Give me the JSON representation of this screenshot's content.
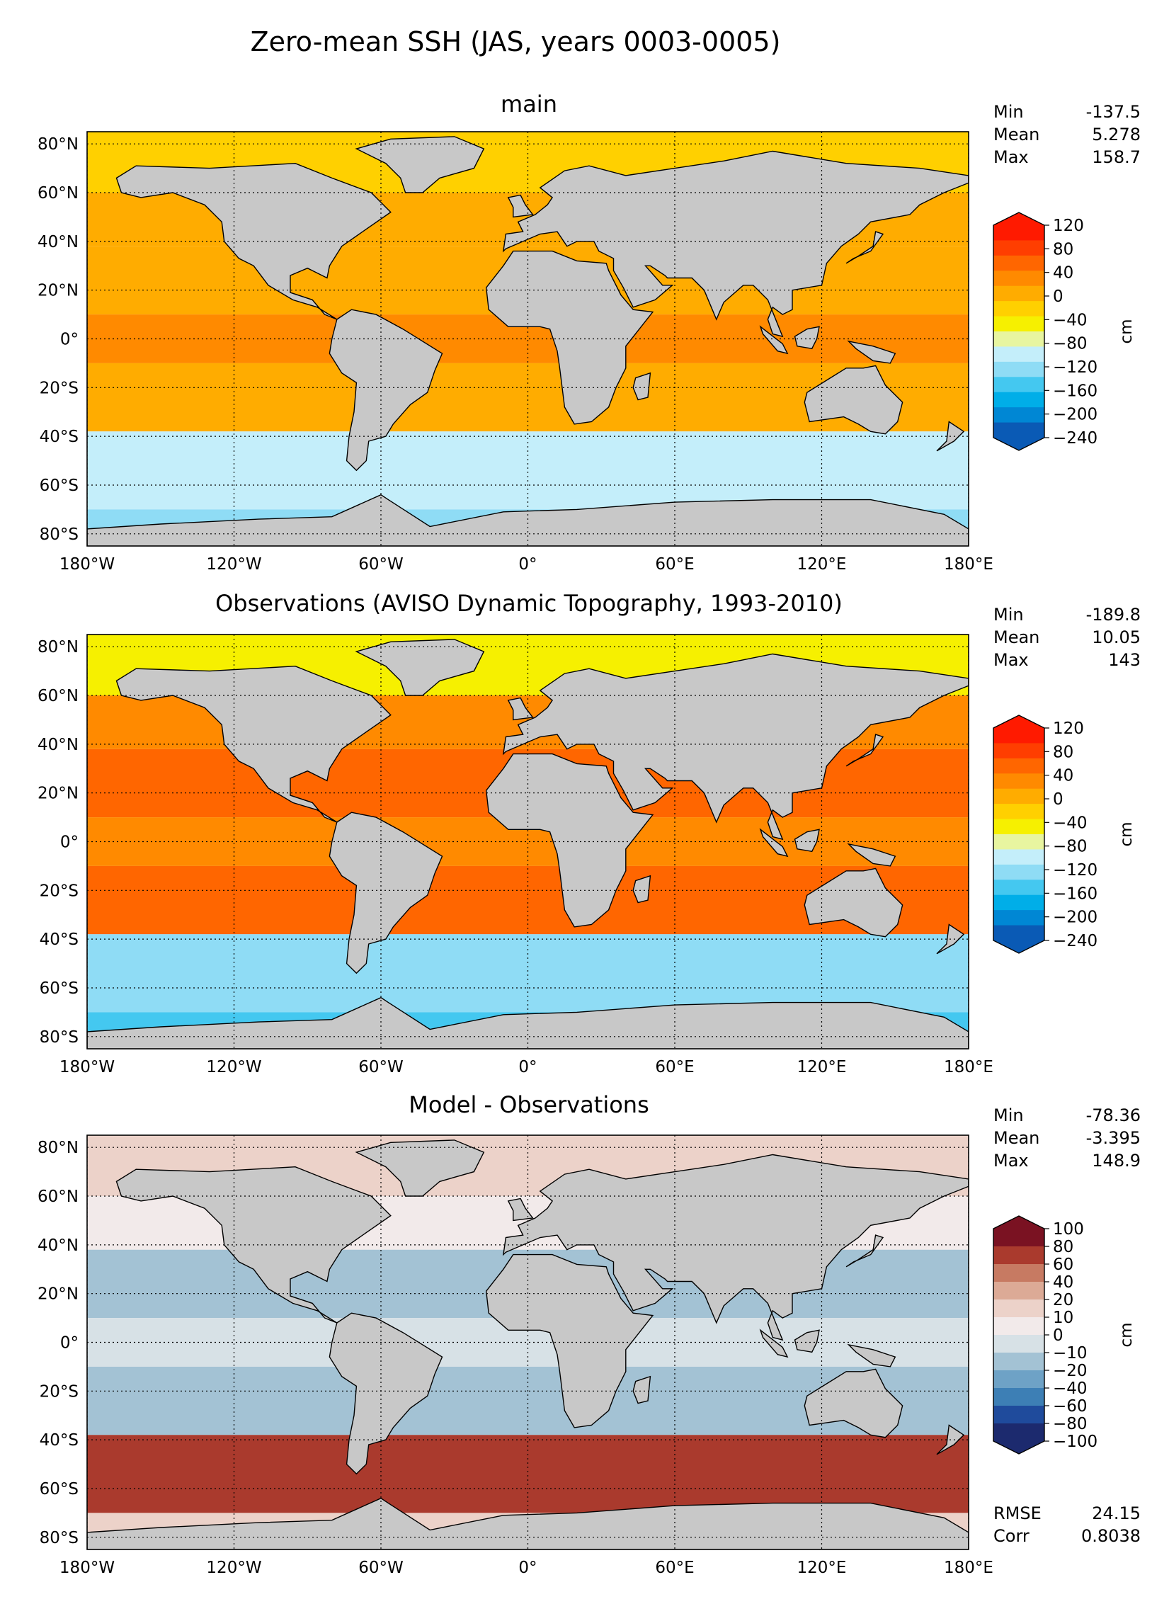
{
  "figure": {
    "suptitle": "Zero-mean SSH (JAS, years 0003-0005)"
  },
  "chart_data": [
    {
      "type": "heatmap",
      "title": "main",
      "xlabel": "",
      "ylabel": "",
      "x_range": [
        -180,
        180
      ],
      "y_range": [
        -85,
        85
      ],
      "x_ticks": [
        "180°W",
        "120°W",
        "60°W",
        "0°",
        "60°E",
        "120°E",
        "180°E"
      ],
      "y_ticks": [
        "80°N",
        "60°N",
        "40°N",
        "20°N",
        "0°",
        "20°S",
        "40°S",
        "60°S",
        "80°S"
      ],
      "grid": true,
      "stats": [
        {
          "label": "Min",
          "value": "-137.5"
        },
        {
          "label": "Mean",
          "value": "5.278"
        },
        {
          "label": "Max",
          "value": "158.7"
        }
      ],
      "colorbar": {
        "label": "cm",
        "ticks": [
          "120",
          "80",
          "40",
          "0",
          "−40",
          "−80",
          "−120",
          "−160",
          "−200",
          "−240"
        ],
        "extend": "both",
        "colors": [
          "#0a5ab5",
          "#0087d4",
          "#00aee8",
          "#44c8f0",
          "#8fdcf5",
          "#c4eefa",
          "#e8f5a0",
          "#f6f000",
          "#ffd000",
          "#ffac00",
          "#ff8a00",
          "#ff6600",
          "#ff3e00",
          "#ff1a00"
        ]
      },
      "field": {
        "equator": 24,
        "subtropics": 14,
        "north_mid": 3,
        "north_high": -32,
        "southern_ocean": -108,
        "south_deep": -122
      }
    },
    {
      "type": "heatmap",
      "title": "Observations (AVISO Dynamic Topography, 1993-2010)",
      "xlabel": "",
      "ylabel": "",
      "x_range": [
        -180,
        180
      ],
      "y_range": [
        -85,
        85
      ],
      "x_ticks": [
        "180°W",
        "120°W",
        "60°W",
        "0°",
        "60°E",
        "120°E",
        "180°E"
      ],
      "y_ticks": [
        "80°N",
        "60°N",
        "40°N",
        "20°N",
        "0°",
        "20°S",
        "40°S",
        "60°S",
        "80°S"
      ],
      "grid": true,
      "stats": [
        {
          "label": "Min",
          "value": "-189.8"
        },
        {
          "label": "Mean",
          "value": "10.05"
        },
        {
          "label": "Max",
          "value": "143"
        }
      ],
      "colorbar": {
        "label": "cm",
        "ticks": [
          "120",
          "80",
          "40",
          "0",
          "−40",
          "−80",
          "−120",
          "−160",
          "−200",
          "−240"
        ],
        "extend": "both",
        "colors": [
          "#0a5ab5",
          "#0087d4",
          "#00aee8",
          "#44c8f0",
          "#8fdcf5",
          "#c4eefa",
          "#e8f5a0",
          "#f6f000",
          "#ffd000",
          "#ffac00",
          "#ff8a00",
          "#ff6600",
          "#ff3e00",
          "#ff1a00"
        ]
      },
      "field": {
        "equator": 38,
        "subtropics": 52,
        "north_mid": 18,
        "north_high": -56,
        "southern_ocean": -135,
        "south_deep": -150
      }
    },
    {
      "type": "heatmap",
      "title": "Model - Observations",
      "xlabel": "",
      "ylabel": "",
      "x_range": [
        -180,
        180
      ],
      "y_range": [
        -85,
        85
      ],
      "x_ticks": [
        "180°W",
        "120°W",
        "60°W",
        "0°",
        "60°E",
        "120°E",
        "180°E"
      ],
      "y_ticks": [
        "80°N",
        "60°N",
        "40°N",
        "20°N",
        "0°",
        "20°S",
        "40°S",
        "60°S",
        "80°S"
      ],
      "grid": true,
      "stats": [
        {
          "label": "Min",
          "value": "-78.36"
        },
        {
          "label": "Mean",
          "value": "-3.395"
        },
        {
          "label": "Max",
          "value": "148.9"
        }
      ],
      "extra_stats": [
        {
          "label": "RMSE",
          "value": "24.15"
        },
        {
          "label": "Corr",
          "value": "0.8038"
        }
      ],
      "colorbar": {
        "label": "cm",
        "ticks": [
          "100",
          "80",
          "60",
          "40",
          "20",
          "10",
          "0",
          "−10",
          "−20",
          "−40",
          "−60",
          "−80",
          "−100"
        ],
        "extend": "both",
        "colors": [
          "#1c2a6e",
          "#1f4b9c",
          "#3d7fb5",
          "#6ea2c6",
          "#a3c2d4",
          "#d7e1e6",
          "#f2eaea",
          "#ecd2c9",
          "#dcaa96",
          "#c77a62",
          "#aa3a2d",
          "#7a1222"
        ]
      },
      "field": {
        "equator": -12,
        "subtropics": -30,
        "north_mid": 6,
        "north_high": 28,
        "southern_ocean": 72,
        "south_deep": 20
      }
    }
  ]
}
